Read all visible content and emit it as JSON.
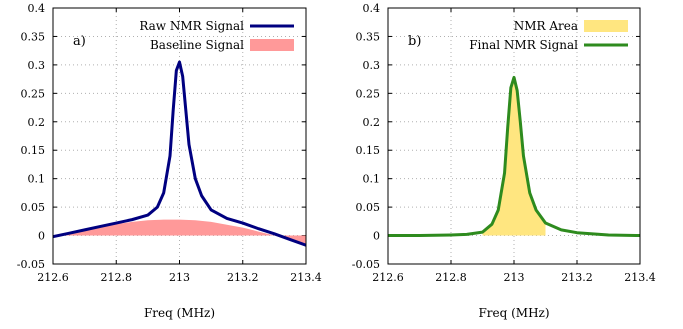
{
  "chart_data": [
    {
      "type": "line",
      "panel_label": "a)",
      "xlabel": "Freq (MHz)",
      "ylabel": "",
      "xlim": [
        212.6,
        213.4
      ],
      "ylim": [
        -0.05,
        0.4
      ],
      "xticks": [
        "212.6",
        "212.8",
        "213",
        "213.2",
        "213.4"
      ],
      "yticks": [
        "-0.05",
        "0",
        "0.05",
        "0.1",
        "0.15",
        "0.2",
        "0.25",
        "0.3",
        "0.35",
        "0.4"
      ],
      "grid": true,
      "legend_position": "top-right",
      "series": [
        {
          "name": "Raw NMR Signal",
          "kind": "line",
          "color": "#000080",
          "x": [
            212.6,
            212.65,
            212.7,
            212.75,
            212.8,
            212.85,
            212.9,
            212.93,
            212.95,
            212.97,
            212.98,
            212.99,
            213.0,
            213.01,
            213.02,
            213.03,
            213.05,
            213.07,
            213.1,
            213.15,
            213.2,
            213.25,
            213.3,
            213.35,
            213.4
          ],
          "y": [
            -0.002,
            0.004,
            0.01,
            0.016,
            0.022,
            0.028,
            0.036,
            0.05,
            0.075,
            0.14,
            0.22,
            0.29,
            0.305,
            0.28,
            0.22,
            0.16,
            0.1,
            0.07,
            0.045,
            0.03,
            0.022,
            0.012,
            0.003,
            -0.007,
            -0.017
          ]
        },
        {
          "name": "Baseline Signal",
          "kind": "area",
          "color": "#ff9999",
          "x": [
            212.6,
            212.65,
            212.7,
            212.75,
            212.8,
            212.85,
            212.9,
            212.95,
            213.0,
            213.05,
            213.1,
            213.15,
            213.2,
            213.25,
            213.3,
            213.35,
            213.4
          ],
          "y": [
            -0.002,
            0.004,
            0.01,
            0.015,
            0.02,
            0.024,
            0.027,
            0.028,
            0.028,
            0.027,
            0.024,
            0.019,
            0.014,
            0.007,
            0.0,
            -0.007,
            -0.014
          ]
        }
      ]
    },
    {
      "type": "line",
      "panel_label": "b)",
      "xlabel": "Freq (MHz)",
      "ylabel": "",
      "xlim": [
        212.6,
        213.4
      ],
      "ylim": [
        -0.05,
        0.4
      ],
      "xticks": [
        "212.6",
        "212.8",
        "213",
        "213.2",
        "213.4"
      ],
      "yticks": [
        "-0.05",
        "0",
        "0.05",
        "0.1",
        "0.15",
        "0.2",
        "0.25",
        "0.3",
        "0.35",
        "0.4"
      ],
      "grid": true,
      "legend_position": "top-right",
      "series": [
        {
          "name": "NMR Area",
          "kind": "area",
          "color": "#ffe680",
          "x": [
            212.9,
            212.93,
            212.95,
            212.97,
            212.98,
            212.99,
            213.0,
            213.01,
            213.02,
            213.03,
            213.05,
            213.07,
            213.1
          ],
          "y": [
            0.006,
            0.02,
            0.045,
            0.11,
            0.19,
            0.26,
            0.278,
            0.255,
            0.2,
            0.14,
            0.075,
            0.045,
            0.022
          ]
        },
        {
          "name": "Final NMR Signal",
          "kind": "line",
          "color": "#2e8b1e",
          "x": [
            212.6,
            212.7,
            212.8,
            212.85,
            212.9,
            212.93,
            212.95,
            212.97,
            212.98,
            212.99,
            213.0,
            213.01,
            213.02,
            213.03,
            213.05,
            213.07,
            213.1,
            213.15,
            213.2,
            213.25,
            213.3,
            213.4
          ],
          "y": [
            0.0,
            0.0,
            0.001,
            0.002,
            0.006,
            0.02,
            0.045,
            0.11,
            0.19,
            0.26,
            0.278,
            0.255,
            0.2,
            0.14,
            0.075,
            0.045,
            0.022,
            0.01,
            0.005,
            0.003,
            0.001,
            0.0
          ]
        }
      ]
    }
  ]
}
